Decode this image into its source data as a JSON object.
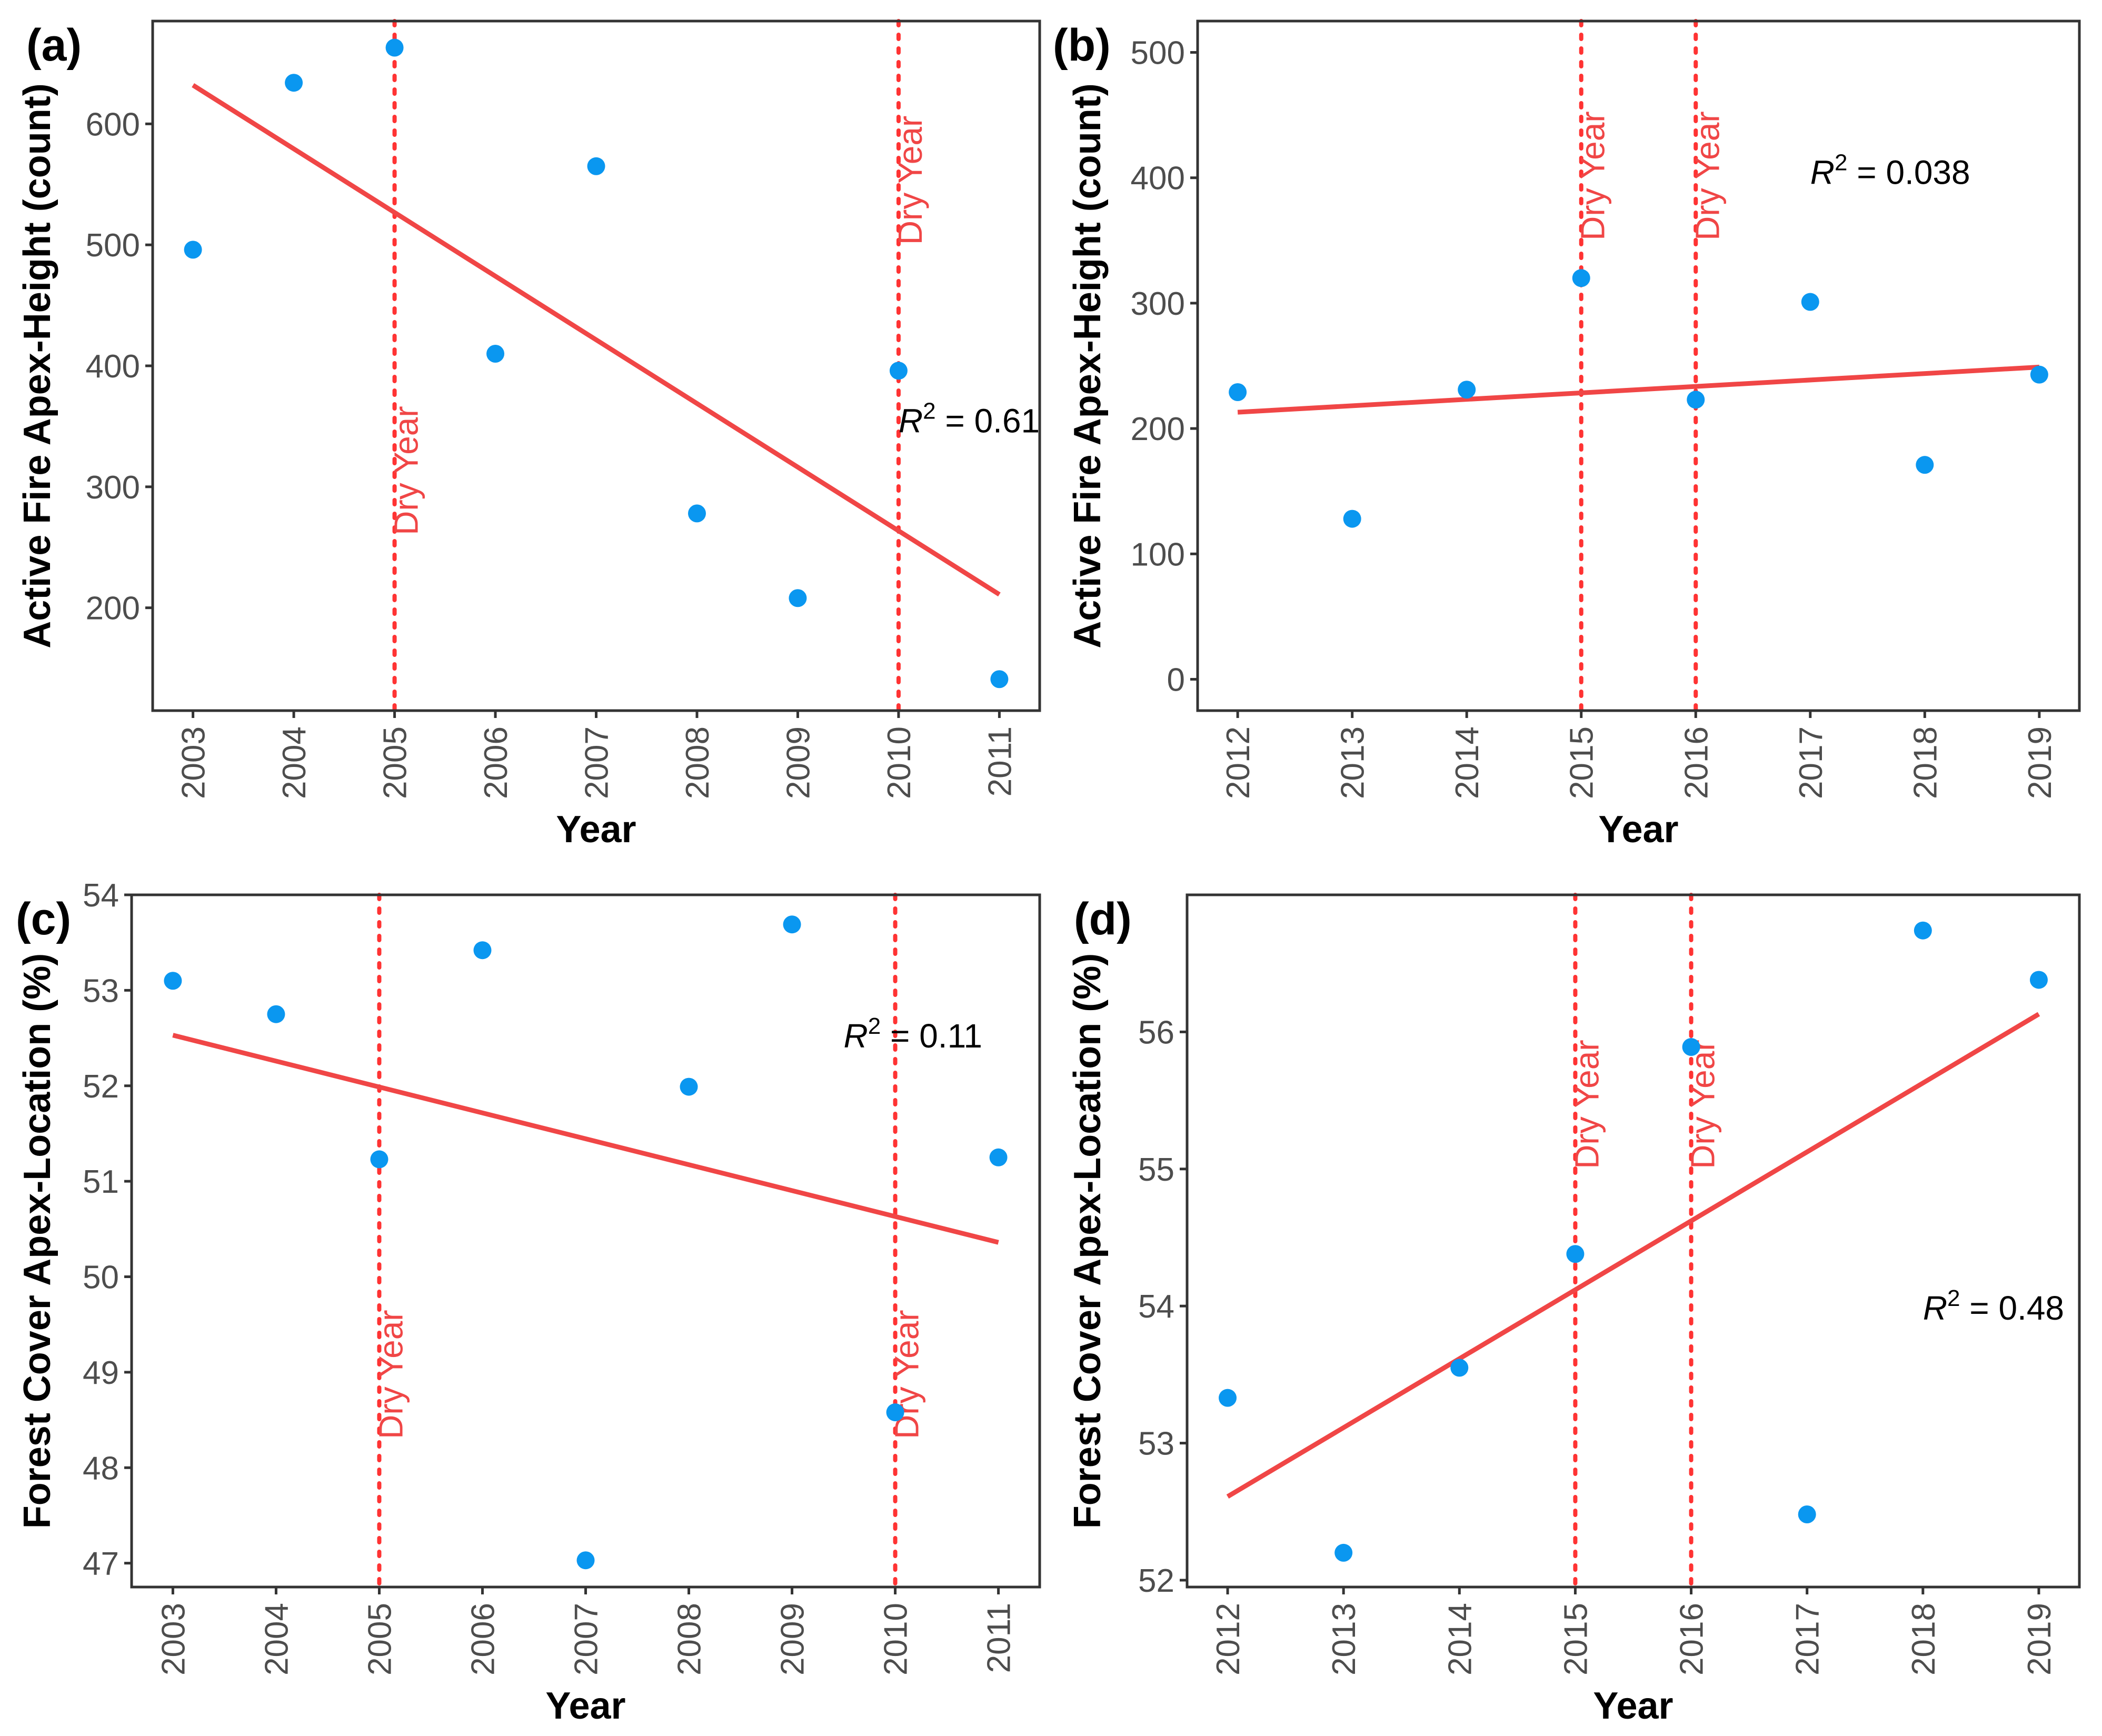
{
  "colors": {
    "point": "#0a97f0",
    "trend": "#f04646",
    "dry_line": "#ff3333",
    "dry_text": "#f04646"
  },
  "chart_data": [
    {
      "panel": "(a)",
      "type": "scatter",
      "xlabel": "Year",
      "ylabel": "Active Fire Apex-Height (count)",
      "x": [
        2003,
        2004,
        2005,
        2006,
        2007,
        2008,
        2009,
        2010,
        2011
      ],
      "y": [
        496,
        634,
        663,
        410,
        565,
        278,
        208,
        396,
        141
      ],
      "xlim": [
        2002.6,
        2011.4
      ],
      "ylim": [
        115,
        685
      ],
      "yticks": [
        200,
        300,
        400,
        500,
        600
      ],
      "trend": {
        "x": [
          2003,
          2011
        ],
        "y": [
          632,
          211
        ]
      },
      "dry_years": [
        2005,
        2010
      ],
      "dry_label": "Dry Year",
      "dry_label_y": [
        260,
        500
      ],
      "r2_label": "0.61",
      "r2_pos": [
        2010.0,
        345
      ],
      "grid": false
    },
    {
      "panel": "(b)",
      "type": "scatter",
      "xlabel": "Year",
      "ylabel": "Active Fire Apex-Height (count)",
      "x": [
        2012,
        2013,
        2014,
        2015,
        2016,
        2017,
        2018,
        2019
      ],
      "y": [
        229,
        128,
        231,
        320,
        223,
        301,
        171,
        243
      ],
      "xlim": [
        2011.65,
        2019.35
      ],
      "ylim": [
        -25,
        525
      ],
      "yticks": [
        0,
        100,
        200,
        300,
        400,
        500
      ],
      "trend": {
        "x": [
          2012,
          2019
        ],
        "y": [
          213,
          249
        ]
      },
      "dry_years": [
        2015,
        2016
      ],
      "dry_label": "Dry Year",
      "dry_label_y": [
        350,
        350
      ],
      "r2_label": "0.038",
      "r2_pos": [
        2017.0,
        395
      ],
      "grid": false
    },
    {
      "panel": "(c)",
      "type": "scatter",
      "xlabel": "Year",
      "ylabel": "Forest Cover Apex-Location (%)",
      "x": [
        2003,
        2004,
        2005,
        2006,
        2007,
        2008,
        2009,
        2010,
        2011
      ],
      "y": [
        53.1,
        52.75,
        51.23,
        53.42,
        47.03,
        51.99,
        53.69,
        48.58,
        51.25
      ],
      "xlim": [
        2002.6,
        2011.4
      ],
      "ylim": [
        46.75,
        54.0
      ],
      "yticks": [
        47,
        48,
        49,
        50,
        51,
        52,
        53,
        54
      ],
      "trend": {
        "x": [
          2003,
          2011
        ],
        "y": [
          52.53,
          50.36
        ]
      },
      "dry_years": [
        2005,
        2010
      ],
      "dry_label": "Dry Year",
      "dry_label_y": [
        48.3,
        48.3
      ],
      "r2_label": "0.11",
      "r2_pos": [
        2009.5,
        52.4
      ],
      "grid": false
    },
    {
      "panel": "(d)",
      "type": "scatter",
      "xlabel": "Year",
      "ylabel": "Forest Cover Apex-Location (%)",
      "x": [
        2012,
        2013,
        2014,
        2015,
        2016,
        2017,
        2018,
        2019
      ],
      "y": [
        53.33,
        52.2,
        53.55,
        54.38,
        55.89,
        52.48,
        56.74,
        56.38
      ],
      "xlim": [
        2011.65,
        2019.35
      ],
      "ylim": [
        51.95,
        57.0
      ],
      "yticks": [
        52,
        53,
        54,
        55,
        56
      ],
      "trend": {
        "x": [
          2012,
          2019
        ],
        "y": [
          52.61,
          56.13
        ]
      },
      "dry_years": [
        2015,
        2016
      ],
      "dry_label": "Dry Year",
      "dry_label_y": [
        55.0,
        55.0
      ],
      "r2_label": "0.48",
      "r2_pos": [
        2018.0,
        53.9
      ],
      "grid": false
    }
  ]
}
